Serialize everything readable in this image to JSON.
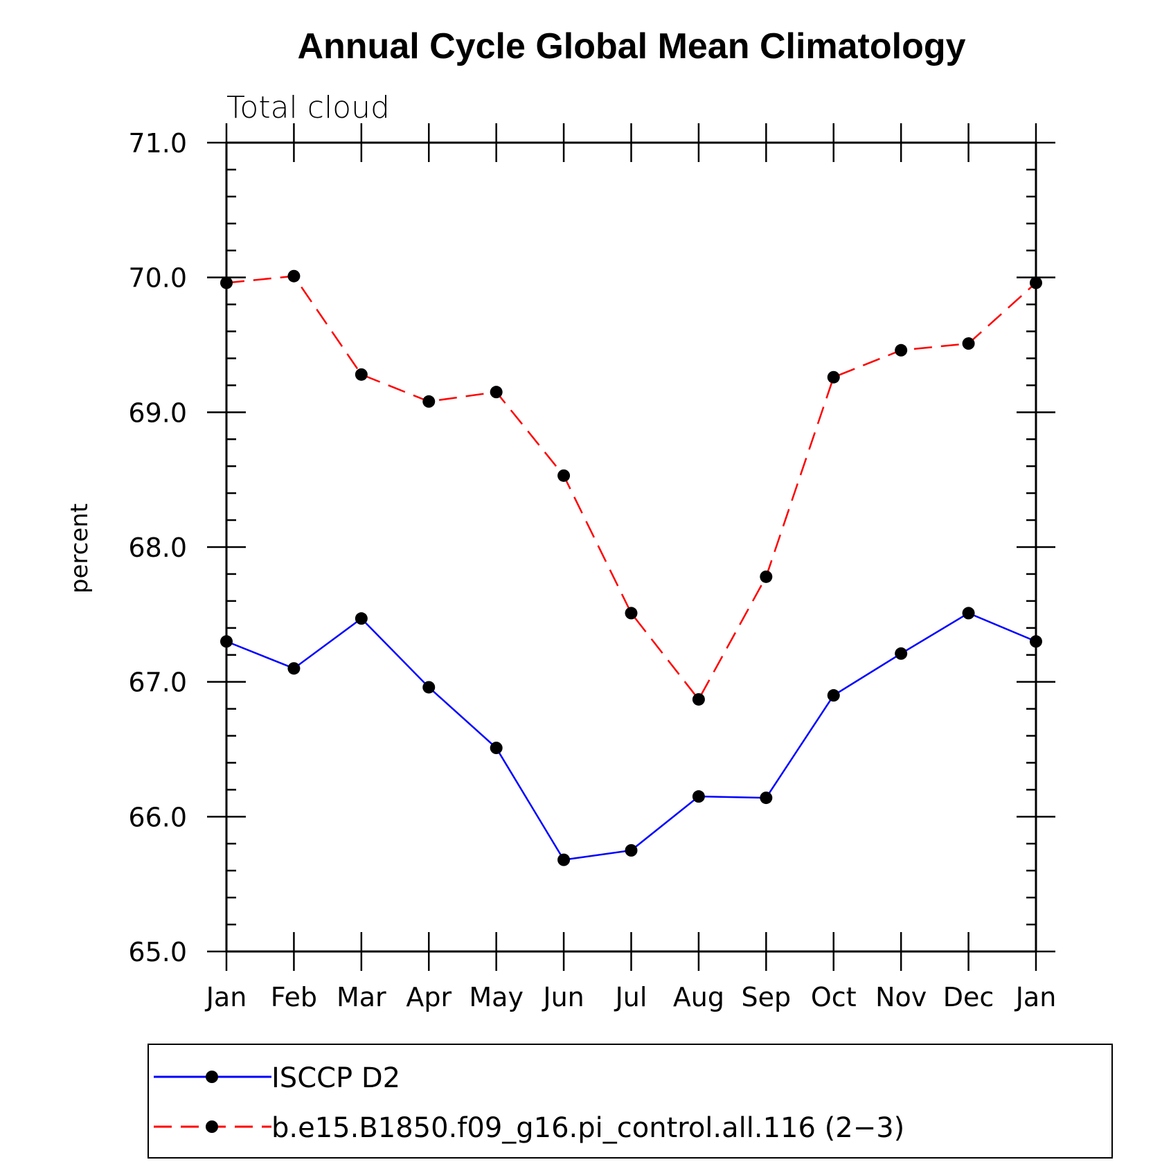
{
  "chart_data": {
    "type": "line",
    "title": "Annual Cycle Global Mean Climatology",
    "subtitle": "Total cloud",
    "xlabel": "",
    "ylabel": "percent",
    "categories": [
      "Jan",
      "Feb",
      "Mar",
      "Apr",
      "May",
      "Jun",
      "Jul",
      "Aug",
      "Sep",
      "Oct",
      "Nov",
      "Dec",
      "Jan"
    ],
    "ylim": [
      65.0,
      71.0
    ],
    "yticks": [
      65.0,
      66.0,
      67.0,
      68.0,
      69.0,
      70.0,
      71.0
    ],
    "ytick_labels": [
      "65.0",
      "66.0",
      "67.0",
      "68.0",
      "69.0",
      "70.0",
      "71.0"
    ],
    "grid": false,
    "legend_position": "bottom",
    "series": [
      {
        "name": "ISCCP D2",
        "color": "#0000ff",
        "style": "solid",
        "marker": "dot",
        "values": [
          67.3,
          67.1,
          67.47,
          66.96,
          66.51,
          65.68,
          65.75,
          66.15,
          66.14,
          66.9,
          67.21,
          67.51,
          67.3
        ]
      },
      {
        "name": "b.e15.B1850.f09_g16.pi_control.all.116 (2−3)",
        "color": "#ff0000",
        "style": "dashed",
        "marker": "dot",
        "values": [
          69.96,
          70.01,
          69.28,
          69.08,
          69.15,
          68.53,
          67.51,
          66.87,
          67.78,
          69.26,
          69.46,
          69.51,
          69.96
        ]
      }
    ]
  }
}
